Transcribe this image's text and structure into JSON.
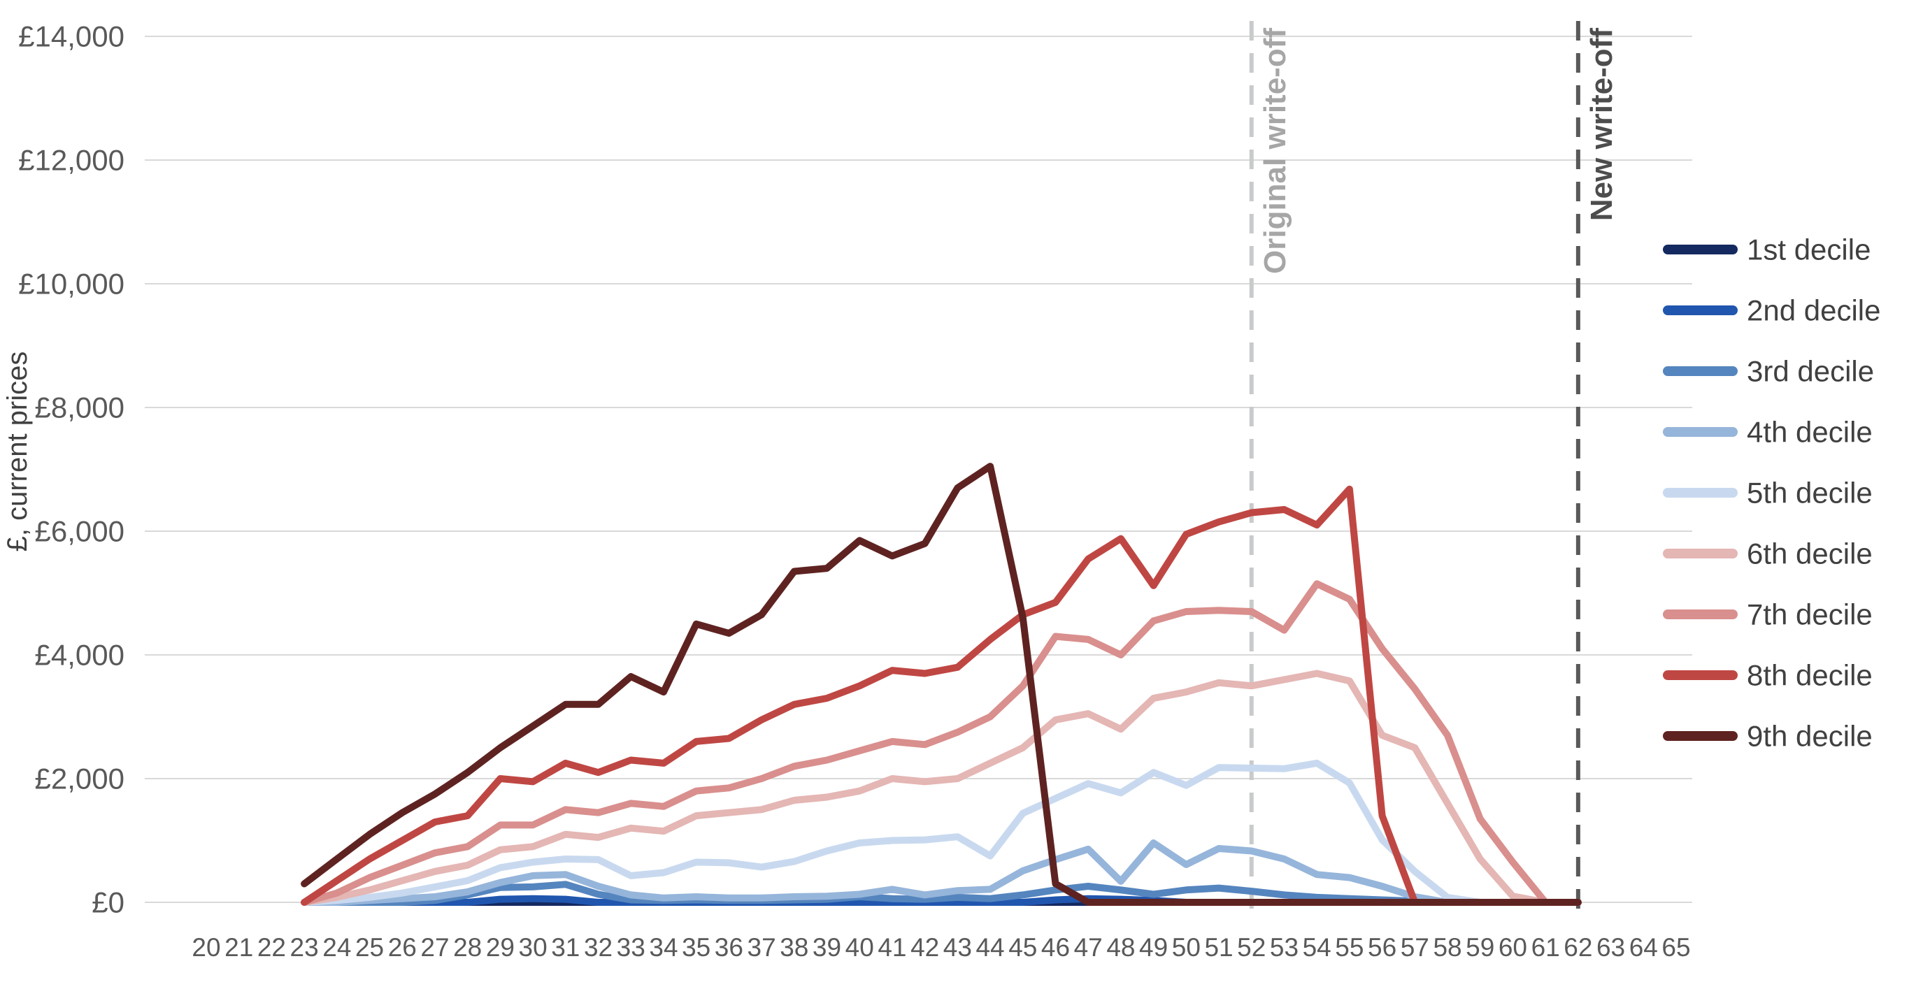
{
  "chart_data": {
    "type": "line",
    "title": "",
    "ylabel": "£, current prices",
    "xlim": [
      20,
      65
    ],
    "ylim": [
      0,
      14000
    ],
    "grid": true,
    "legend_position": "right",
    "x": [
      20,
      21,
      22,
      23,
      24,
      25,
      26,
      27,
      28,
      29,
      30,
      31,
      32,
      33,
      34,
      35,
      36,
      37,
      38,
      39,
      40,
      41,
      42,
      43,
      44,
      45,
      46,
      47,
      48,
      49,
      50,
      51,
      52,
      53,
      54,
      55,
      56,
      57,
      58,
      59,
      60,
      61,
      62,
      63,
      64,
      65
    ],
    "y_ticks": [
      {
        "value": 0,
        "label": "£0"
      },
      {
        "value": 2000,
        "label": "£2,000"
      },
      {
        "value": 4000,
        "label": "£4,000"
      },
      {
        "value": 6000,
        "label": "£6,000"
      },
      {
        "value": 8000,
        "label": "£8,000"
      },
      {
        "value": 10000,
        "label": "£10,000"
      },
      {
        "value": 12000,
        "label": "£12,000"
      },
      {
        "value": 14000,
        "label": "£14,000"
      }
    ],
    "annotations": [
      {
        "label": "Original write-off",
        "x": 52,
        "line_color": "#C9CACB",
        "text_color": "#A6A6A6"
      },
      {
        "label": "New write-off",
        "x": 62,
        "line_color": "#595959",
        "text_color": "#4D4D4D"
      }
    ],
    "colors": {
      "axis_text": "#595959",
      "gridline": "#D9D9D9",
      "legend_text": "#404040"
    },
    "series": [
      {
        "name": "1st decile",
        "color": "#142960",
        "values": [
          null,
          null,
          null,
          0,
          0,
          0,
          0,
          0,
          0,
          0,
          0,
          0,
          0,
          0,
          0,
          0,
          0,
          0,
          0,
          0,
          0,
          0,
          0,
          0,
          0,
          0,
          0,
          0,
          0,
          0,
          0,
          0,
          0,
          0,
          0,
          0,
          0,
          0,
          0,
          0,
          0,
          0,
          0,
          null,
          null,
          null
        ]
      },
      {
        "name": "2nd decile",
        "color": "#2056AE",
        "values": [
          null,
          null,
          null,
          0,
          0,
          0,
          0,
          0,
          0,
          50,
          60,
          50,
          0,
          0,
          0,
          0,
          0,
          0,
          0,
          0,
          0,
          0,
          0,
          0,
          0,
          0,
          40,
          60,
          50,
          30,
          0,
          0,
          0,
          0,
          0,
          0,
          0,
          0,
          0,
          0,
          0,
          0,
          0,
          null,
          null,
          null
        ]
      },
      {
        "name": "3rd decile",
        "color": "#5585BE",
        "values": [
          null,
          null,
          null,
          0,
          0,
          0,
          0,
          30,
          120,
          240,
          250,
          290,
          130,
          40,
          30,
          40,
          30,
          30,
          40,
          50,
          90,
          60,
          50,
          80,
          60,
          120,
          200,
          260,
          200,
          130,
          200,
          230,
          180,
          120,
          80,
          60,
          40,
          20,
          0,
          0,
          0,
          0,
          0,
          null,
          null,
          null
        ]
      },
      {
        "name": "4th decile",
        "color": "#96B5DA",
        "values": [
          null,
          null,
          null,
          0,
          0,
          30,
          60,
          90,
          170,
          320,
          430,
          450,
          260,
          120,
          70,
          90,
          70,
          70,
          90,
          100,
          130,
          210,
          120,
          190,
          210,
          510,
          690,
          860,
          340,
          960,
          610,
          870,
          830,
          700,
          450,
          400,
          260,
          90,
          0,
          0,
          0,
          0,
          0,
          null,
          null,
          null
        ]
      },
      {
        "name": "5th decile",
        "color": "#C8D9EF",
        "values": [
          null,
          null,
          null,
          0,
          30,
          80,
          150,
          250,
          350,
          560,
          650,
          700,
          690,
          430,
          480,
          650,
          640,
          570,
          660,
          830,
          960,
          1000,
          1010,
          1060,
          750,
          1440,
          1680,
          1920,
          1770,
          2100,
          1890,
          2180,
          2170,
          2160,
          2250,
          1930,
          1010,
          500,
          80,
          0,
          0,
          0,
          0,
          null,
          null,
          null
        ]
      },
      {
        "name": "6th decile",
        "color": "#E4B6B4",
        "values": [
          null,
          null,
          null,
          0,
          80,
          200,
          350,
          500,
          600,
          850,
          900,
          1100,
          1050,
          1200,
          1150,
          1400,
          1450,
          1500,
          1650,
          1700,
          1800,
          2000,
          1950,
          2000,
          2250,
          2500,
          2950,
          3050,
          2800,
          3300,
          3400,
          3550,
          3500,
          3600,
          3700,
          3580,
          2700,
          2500,
          1600,
          700,
          100,
          0,
          0,
          null,
          null,
          null
        ]
      },
      {
        "name": "7th decile",
        "color": "#D98F8D",
        "values": [
          null,
          null,
          null,
          0,
          150,
          400,
          600,
          800,
          900,
          1250,
          1250,
          1500,
          1450,
          1600,
          1550,
          1800,
          1850,
          2000,
          2200,
          2300,
          2450,
          2600,
          2550,
          2750,
          3000,
          3500,
          4300,
          4250,
          4000,
          4550,
          4700,
          4720,
          4700,
          4400,
          5150,
          4900,
          4100,
          3450,
          2700,
          1350,
          650,
          0,
          0,
          null,
          null,
          null
        ]
      },
      {
        "name": "8th decile",
        "color": "#BF4743",
        "values": [
          null,
          null,
          null,
          0,
          350,
          700,
          1000,
          1300,
          1400,
          2000,
          1950,
          2250,
          2100,
          2300,
          2250,
          2600,
          2650,
          2950,
          3200,
          3300,
          3500,
          3750,
          3700,
          3800,
          4250,
          4650,
          4850,
          5550,
          5880,
          5120,
          5950,
          6150,
          6300,
          6350,
          6100,
          6680,
          1400,
          0,
          0,
          0,
          0,
          0,
          0,
          null,
          null,
          null
        ]
      },
      {
        "name": "9th decile",
        "color": "#5E2321",
        "values": [
          null,
          null,
          null,
          300,
          700,
          1100,
          1450,
          1750,
          2100,
          2500,
          2850,
          3200,
          3200,
          3650,
          3400,
          4500,
          4350,
          4650,
          5350,
          5400,
          5850,
          5600,
          5800,
          6700,
          7050,
          4600,
          300,
          0,
          0,
          0,
          0,
          0,
          0,
          0,
          0,
          0,
          0,
          0,
          0,
          0,
          0,
          0,
          0,
          null,
          null,
          null
        ]
      }
    ]
  }
}
